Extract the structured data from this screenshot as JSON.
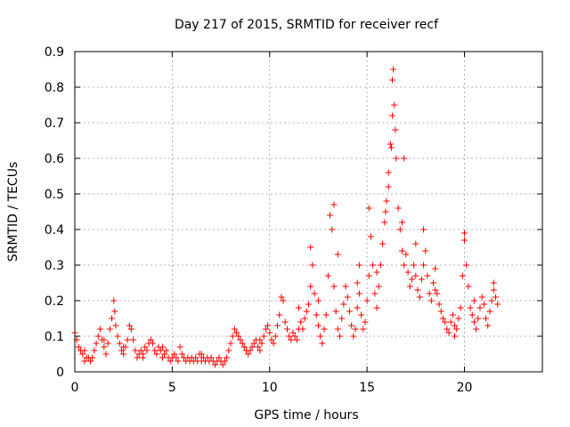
{
  "chart_data": {
    "type": "scatter",
    "title": "Day 217 of 2015, SRMTID for receiver recf",
    "xlabel": "GPS time / hours",
    "ylabel": "SRMTID / TECUs",
    "xlim": [
      0,
      24
    ],
    "ylim": [
      0,
      0.9
    ],
    "x_ticks": [
      0,
      5,
      10,
      15,
      20
    ],
    "y_ticks": [
      0,
      0.1,
      0.2,
      0.3,
      0.4,
      0.5,
      0.6,
      0.7,
      0.8,
      0.9
    ],
    "grid": true,
    "marker": "+",
    "color": "#ff0000",
    "series": [
      {
        "name": "SRMTID",
        "points": [
          [
            0.0,
            0.11
          ],
          [
            0.1,
            0.09
          ],
          [
            0.2,
            0.07
          ],
          [
            0.3,
            0.06
          ],
          [
            0.4,
            0.05
          ],
          [
            0.5,
            0.06
          ],
          [
            0.6,
            0.04
          ],
          [
            0.7,
            0.04
          ],
          [
            0.8,
            0.03
          ],
          [
            0.9,
            0.04
          ],
          [
            1.0,
            0.06
          ],
          [
            1.1,
            0.08
          ],
          [
            1.2,
            0.1
          ],
          [
            1.3,
            0.12
          ],
          [
            1.4,
            0.09
          ],
          [
            1.5,
            0.07
          ],
          [
            1.6,
            0.05
          ],
          [
            1.7,
            0.08
          ],
          [
            1.8,
            0.12
          ],
          [
            1.9,
            0.15
          ],
          [
            2.0,
            0.2
          ],
          [
            2.05,
            0.17
          ],
          [
            2.1,
            0.13
          ],
          [
            2.2,
            0.1
          ],
          [
            2.3,
            0.08
          ],
          [
            2.4,
            0.06
          ],
          [
            2.5,
            0.05
          ],
          [
            2.6,
            0.07
          ],
          [
            2.7,
            0.09
          ],
          [
            2.8,
            0.13
          ],
          [
            2.9,
            0.12
          ],
          [
            3.0,
            0.09
          ],
          [
            3.1,
            0.06
          ],
          [
            3.2,
            0.04
          ],
          [
            3.3,
            0.05
          ],
          [
            3.4,
            0.06
          ],
          [
            3.5,
            0.05
          ],
          [
            3.6,
            0.07
          ],
          [
            3.7,
            0.06
          ],
          [
            3.8,
            0.08
          ],
          [
            3.9,
            0.09
          ],
          [
            4.0,
            0.08
          ],
          [
            4.1,
            0.06
          ],
          [
            4.2,
            0.05
          ],
          [
            4.3,
            0.07
          ],
          [
            4.4,
            0.06
          ],
          [
            4.5,
            0.04
          ],
          [
            4.6,
            0.05
          ],
          [
            4.7,
            0.06
          ],
          [
            4.8,
            0.04
          ],
          [
            4.9,
            0.03
          ],
          [
            5.0,
            0.04
          ],
          [
            5.1,
            0.05
          ],
          [
            5.2,
            0.04
          ],
          [
            5.3,
            0.03
          ],
          [
            5.4,
            0.07
          ],
          [
            5.5,
            0.05
          ],
          [
            5.6,
            0.04
          ],
          [
            5.7,
            0.03
          ],
          [
            5.8,
            0.04
          ],
          [
            5.9,
            0.03
          ],
          [
            6.0,
            0.04
          ],
          [
            6.1,
            0.03
          ],
          [
            6.2,
            0.04
          ],
          [
            6.3,
            0.03
          ],
          [
            6.4,
            0.05
          ],
          [
            6.5,
            0.03
          ],
          [
            6.6,
            0.04
          ],
          [
            6.7,
            0.03
          ],
          [
            6.8,
            0.04
          ],
          [
            6.9,
            0.03
          ],
          [
            7.0,
            0.04
          ],
          [
            7.1,
            0.03
          ],
          [
            7.2,
            0.02
          ],
          [
            7.3,
            0.03
          ],
          [
            7.4,
            0.04
          ],
          [
            7.5,
            0.03
          ],
          [
            7.6,
            0.02
          ],
          [
            7.7,
            0.03
          ],
          [
            7.8,
            0.04
          ],
          [
            7.9,
            0.06
          ],
          [
            8.0,
            0.08
          ],
          [
            8.1,
            0.1
          ],
          [
            8.2,
            0.12
          ],
          [
            8.3,
            0.11
          ],
          [
            8.4,
            0.1
          ],
          [
            8.5,
            0.09
          ],
          [
            8.6,
            0.08
          ],
          [
            8.7,
            0.07
          ],
          [
            8.8,
            0.06
          ],
          [
            8.9,
            0.05
          ],
          [
            9.0,
            0.06
          ],
          [
            9.1,
            0.07
          ],
          [
            9.2,
            0.08
          ],
          [
            9.3,
            0.09
          ],
          [
            9.4,
            0.07
          ],
          [
            9.5,
            0.06
          ],
          [
            9.6,
            0.08
          ],
          [
            9.7,
            0.1
          ],
          [
            9.8,
            0.12
          ],
          [
            9.9,
            0.13
          ],
          [
            10.0,
            0.11
          ],
          [
            10.1,
            0.09
          ],
          [
            10.2,
            0.08
          ],
          [
            10.3,
            0.1
          ],
          [
            10.4,
            0.13
          ],
          [
            10.5,
            0.16
          ],
          [
            10.6,
            0.21
          ],
          [
            10.7,
            0.2
          ],
          [
            10.8,
            0.14
          ],
          [
            10.9,
            0.12
          ],
          [
            11.0,
            0.1
          ],
          [
            11.1,
            0.09
          ],
          [
            11.2,
            0.11
          ],
          [
            11.3,
            0.1
          ],
          [
            11.4,
            0.09
          ],
          [
            11.5,
            0.12
          ],
          [
            11.6,
            0.14
          ],
          [
            11.7,
            0.12
          ],
          [
            11.8,
            0.15
          ],
          [
            11.9,
            0.17
          ],
          [
            12.0,
            0.19
          ],
          [
            12.1,
            0.24
          ],
          [
            12.2,
            0.3
          ],
          [
            12.3,
            0.22
          ],
          [
            12.4,
            0.16
          ],
          [
            12.5,
            0.13
          ],
          [
            12.6,
            0.1
          ],
          [
            12.7,
            0.08
          ],
          [
            12.8,
            0.12
          ],
          [
            12.9,
            0.16
          ],
          [
            13.0,
            0.27
          ],
          [
            13.1,
            0.44
          ],
          [
            13.2,
            0.4
          ],
          [
            13.3,
            0.24
          ],
          [
            13.4,
            0.17
          ],
          [
            13.5,
            0.12
          ],
          [
            13.6,
            0.1
          ],
          [
            13.7,
            0.15
          ],
          [
            13.8,
            0.19
          ],
          [
            13.9,
            0.24
          ],
          [
            14.0,
            0.21
          ],
          [
            14.1,
            0.17
          ],
          [
            14.2,
            0.13
          ],
          [
            14.3,
            0.1
          ],
          [
            14.4,
            0.12
          ],
          [
            14.5,
            0.18
          ],
          [
            14.6,
            0.22
          ],
          [
            14.7,
            0.16
          ],
          [
            14.8,
            0.12
          ],
          [
            14.9,
            0.14
          ],
          [
            15.0,
            0.2
          ],
          [
            15.1,
            0.27
          ],
          [
            15.2,
            0.38
          ],
          [
            15.3,
            0.3
          ],
          [
            15.4,
            0.22
          ],
          [
            15.5,
            0.18
          ],
          [
            15.6,
            0.24
          ],
          [
            15.7,
            0.3
          ],
          [
            15.8,
            0.36
          ],
          [
            15.9,
            0.42
          ],
          [
            16.0,
            0.48
          ],
          [
            16.1,
            0.52
          ],
          [
            16.2,
            0.64
          ],
          [
            16.3,
            0.72
          ],
          [
            16.35,
            0.85
          ],
          [
            16.4,
            0.75
          ],
          [
            16.5,
            0.6
          ],
          [
            16.6,
            0.46
          ],
          [
            16.7,
            0.4
          ],
          [
            16.8,
            0.34
          ],
          [
            16.9,
            0.3
          ],
          [
            17.0,
            0.33
          ],
          [
            17.1,
            0.28
          ],
          [
            17.2,
            0.24
          ],
          [
            17.3,
            0.26
          ],
          [
            17.4,
            0.3
          ],
          [
            17.5,
            0.27
          ],
          [
            17.6,
            0.23
          ],
          [
            17.7,
            0.21
          ],
          [
            17.8,
            0.26
          ],
          [
            17.9,
            0.3
          ],
          [
            18.0,
            0.34
          ],
          [
            18.1,
            0.27
          ],
          [
            18.2,
            0.22
          ],
          [
            18.3,
            0.2
          ],
          [
            18.4,
            0.25
          ],
          [
            18.5,
            0.29
          ],
          [
            18.6,
            0.22
          ],
          [
            18.7,
            0.19
          ],
          [
            18.8,
            0.17
          ],
          [
            18.9,
            0.15
          ],
          [
            19.0,
            0.14
          ],
          [
            19.1,
            0.12
          ],
          [
            19.2,
            0.11
          ],
          [
            19.3,
            0.14
          ],
          [
            19.4,
            0.16
          ],
          [
            19.5,
            0.13
          ],
          [
            19.6,
            0.12
          ],
          [
            19.7,
            0.15
          ],
          [
            19.8,
            0.18
          ],
          [
            19.9,
            0.27
          ],
          [
            20.0,
            0.37
          ],
          [
            20.1,
            0.3
          ],
          [
            20.2,
            0.24
          ],
          [
            20.3,
            0.18
          ],
          [
            20.4,
            0.16
          ],
          [
            20.5,
            0.14
          ],
          [
            20.6,
            0.12
          ],
          [
            20.7,
            0.15
          ],
          [
            20.8,
            0.18
          ],
          [
            20.9,
            0.21
          ],
          [
            21.0,
            0.19
          ],
          [
            21.1,
            0.15
          ],
          [
            21.2,
            0.13
          ],
          [
            21.3,
            0.17
          ],
          [
            21.4,
            0.2
          ],
          [
            21.5,
            0.23
          ],
          [
            21.6,
            0.21
          ],
          [
            21.7,
            0.19
          ],
          [
            0.5,
            0.03
          ],
          [
            1.5,
            0.09
          ],
          [
            2.5,
            0.07
          ],
          [
            3.5,
            0.04
          ],
          [
            4.5,
            0.07
          ],
          [
            6.5,
            0.05
          ],
          [
            9.5,
            0.09
          ],
          [
            11.5,
            0.18
          ],
          [
            12.5,
            0.2
          ],
          [
            13.5,
            0.33
          ],
          [
            14.5,
            0.25
          ],
          [
            15.5,
            0.28
          ],
          [
            16.8,
            0.42
          ],
          [
            17.5,
            0.36
          ],
          [
            18.5,
            0.23
          ],
          [
            19.5,
            0.1
          ],
          [
            20.5,
            0.2
          ],
          [
            21.5,
            0.25
          ],
          [
            16.1,
            0.56
          ],
          [
            16.45,
            0.68
          ],
          [
            16.9,
            0.6
          ],
          [
            13.3,
            0.47
          ],
          [
            15.1,
            0.46
          ],
          [
            17.9,
            0.4
          ],
          [
            20.0,
            0.39
          ],
          [
            12.1,
            0.35
          ],
          [
            16.3,
            0.82
          ],
          [
            16.25,
            0.63
          ],
          [
            15.95,
            0.45
          ],
          [
            14.6,
            0.3
          ]
        ]
      }
    ]
  }
}
